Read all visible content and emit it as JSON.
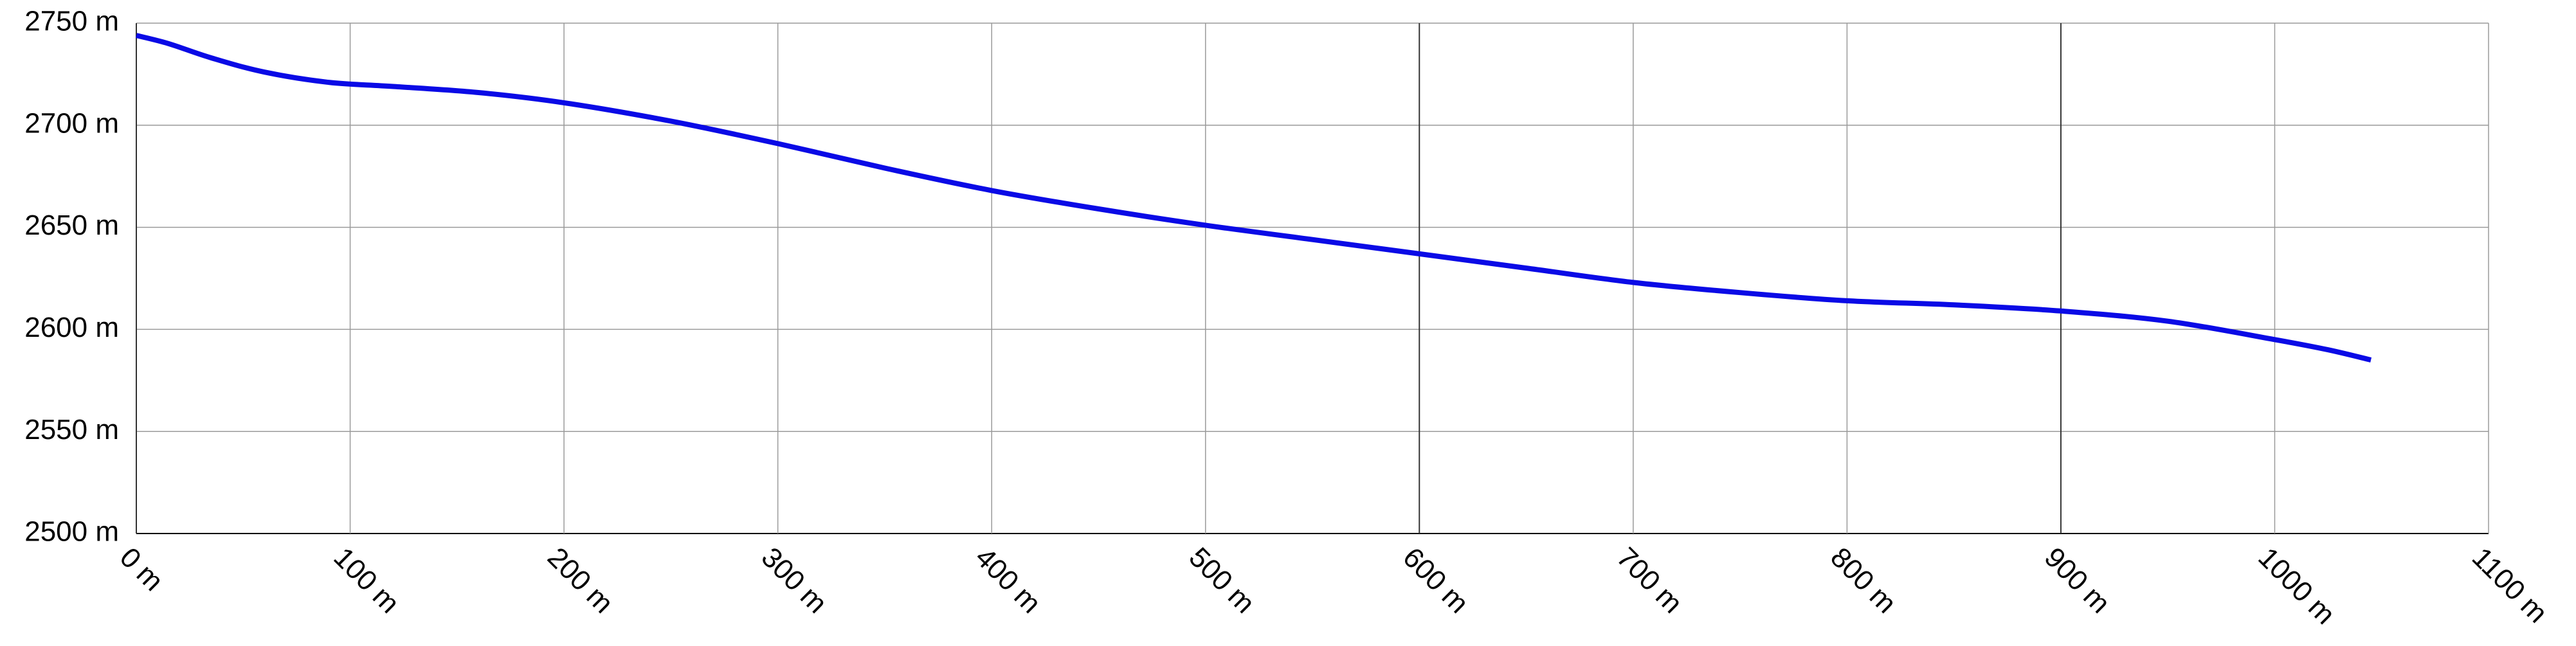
{
  "chart_data": {
    "type": "line",
    "title": "",
    "xlabel": "",
    "ylabel": "",
    "x_unit": "m",
    "y_unit": "m",
    "xlim": [
      0,
      1100
    ],
    "ylim": [
      2500,
      2750
    ],
    "x_ticks": [
      "0 m",
      "100 m",
      "200 m",
      "300 m",
      "400 m",
      "500 m",
      "600 m",
      "700 m",
      "800 m",
      "900 m",
      "1000 m",
      "1100 m"
    ],
    "y_ticks": [
      "2750 m",
      "2700 m",
      "2650 m",
      "2600 m",
      "2550 m",
      "2500 m"
    ],
    "grid": true,
    "series": [
      {
        "color": "#0a0ae6",
        "x": [
          0,
          15,
          35,
          60,
          90,
          120,
          160,
          200,
          250,
          300,
          350,
          400,
          450,
          500,
          550,
          600,
          650,
          700,
          750,
          800,
          850,
          900,
          950,
          1000,
          1025,
          1045
        ],
        "y": [
          2744,
          2740,
          2733,
          2726,
          2721,
          2719,
          2716,
          2711,
          2702,
          2691,
          2679,
          2668,
          2659,
          2651,
          2644,
          2637,
          2630,
          2623,
          2618,
          2614,
          2612,
          2609,
          2604,
          2595,
          2590,
          2585
        ]
      }
    ],
    "axis_color": "#000000",
    "grid_color": "#9a9a9a",
    "dark_grid_color": "#333333"
  }
}
